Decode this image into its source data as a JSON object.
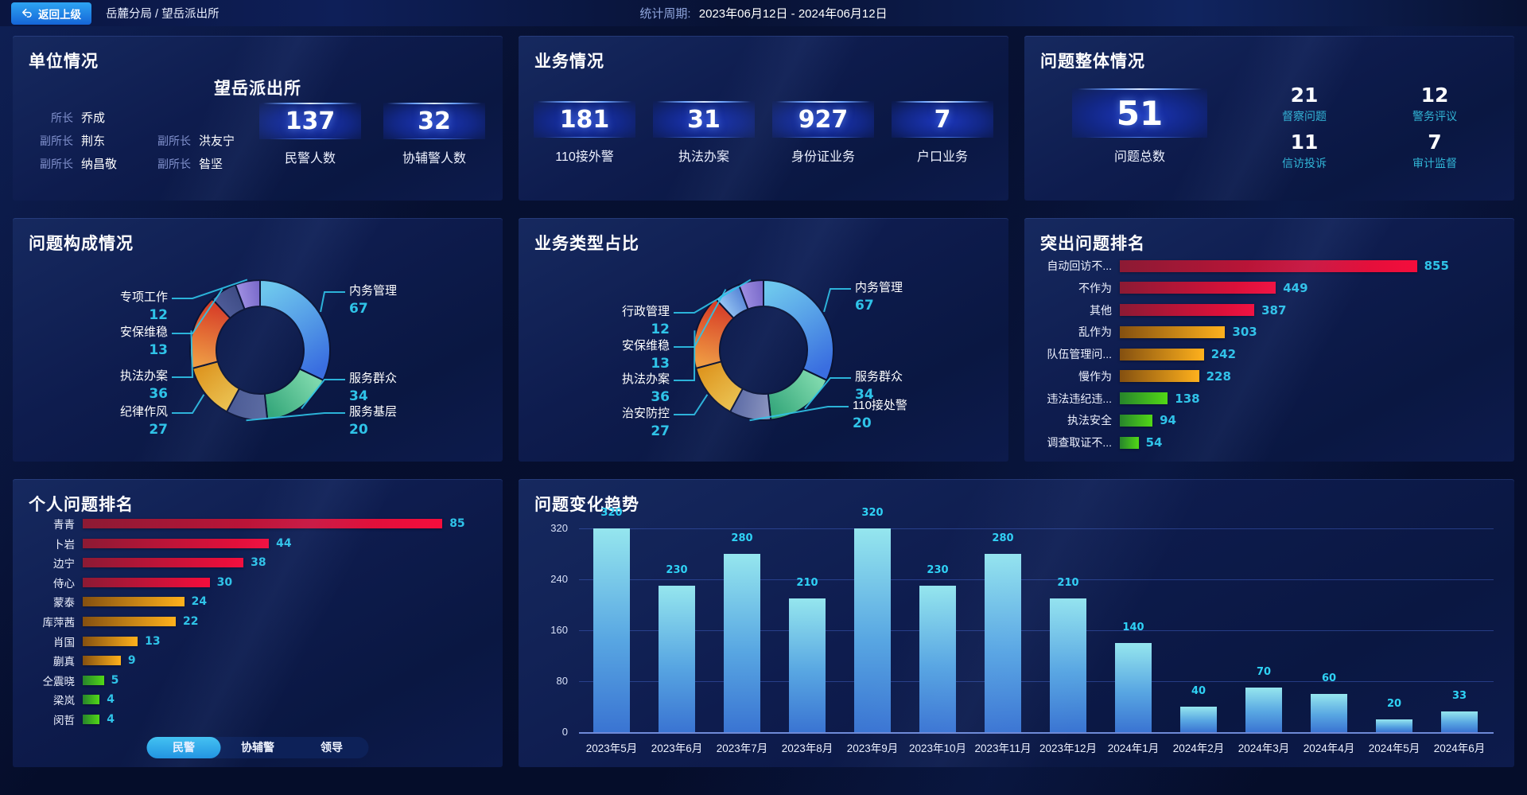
{
  "header": {
    "back_button": "返回上级",
    "breadcrumb": "岳麓分局 / 望岳派出所",
    "period_label": "统计周期:",
    "period_value": "2023年06月12日 - 2024年06月12日"
  },
  "unit_panel": {
    "title": "单位情况",
    "station_name": "望岳派出所",
    "leader_rows": [
      [
        {
          "role": "所长",
          "name": "乔成"
        }
      ],
      [
        {
          "role": "副所长",
          "name": "荆东"
        },
        {
          "role": "副所长",
          "name": "洪友宁"
        }
      ],
      [
        {
          "role": "副所长",
          "name": "纳昌敬"
        },
        {
          "role": "副所长",
          "name": "昝坚"
        }
      ]
    ],
    "stats": [
      {
        "value": "137",
        "label": "民警人数"
      },
      {
        "value": "32",
        "label": "协辅警人数"
      }
    ]
  },
  "business_panel": {
    "title": "业务情况",
    "stats": [
      {
        "value": "181",
        "label": "110接外警"
      },
      {
        "value": "31",
        "label": "执法办案"
      },
      {
        "value": "927",
        "label": "身份证业务"
      },
      {
        "value": "7",
        "label": "户口业务"
      }
    ]
  },
  "problem_panel": {
    "title": "问题整体情况",
    "total": {
      "value": "51",
      "label": "问题总数"
    },
    "stats": [
      {
        "value": "21",
        "label": "督察问题"
      },
      {
        "value": "12",
        "label": "警务评议"
      },
      {
        "value": "11",
        "label": "信访投诉"
      },
      {
        "value": "7",
        "label": "审计监督"
      }
    ]
  },
  "personal_panel": {
    "tabs": [
      {
        "label": "民警",
        "active": true
      },
      {
        "label": "协辅警",
        "active": false
      },
      {
        "label": "领导",
        "active": false
      }
    ]
  },
  "colors": {
    "accent_cyan": "#2fc3e8",
    "label_cyan": "#31b5d6",
    "palette": {
      "red": [
        "#8c1a34",
        "#f50d3c"
      ],
      "gold": [
        "#845010",
        "#ffb11c"
      ],
      "green": [
        "#27842c",
        "#52d816"
      ]
    },
    "trend_bar": [
      "#95e6ee",
      "#3a74d2"
    ]
  },
  "chart_data": [
    {
      "id": "problem_composition",
      "type": "pie",
      "title": "问题构成情况",
      "labels": [
        "内务管理",
        "服务群众",
        "服务基层",
        "纪律作风",
        "执法办案",
        "安保维稳",
        "专项工作"
      ],
      "values": [
        67,
        34,
        20,
        27,
        36,
        13,
        12
      ],
      "colors": [
        [
          "#6cc8ec",
          "#3a6ee0"
        ],
        [
          "#7ed8ac",
          "#35a87a"
        ],
        [
          "#5b6aa0",
          "#4a5890"
        ],
        [
          "#f2c141",
          "#e0961c"
        ],
        [
          "#f09a40",
          "#d84028"
        ],
        [
          "#4d5a96",
          "#3e4b84"
        ],
        [
          "#9d8ce0",
          "#7a68c8"
        ]
      ],
      "legend_position": "none"
    },
    {
      "id": "business_type",
      "type": "pie",
      "title": "业务类型占比",
      "labels": [
        "内务管理",
        "服务群众",
        "110接处警",
        "治安防控",
        "执法办案",
        "安保维稳",
        "行政管理"
      ],
      "values": [
        67,
        34,
        20,
        27,
        36,
        13,
        12
      ],
      "colors": [
        [
          "#6cc8ec",
          "#3a6ee0"
        ],
        [
          "#7ed8ac",
          "#35a87a"
        ],
        [
          "#8a93bd",
          "#5d6aa2"
        ],
        [
          "#f2c141",
          "#e0961c"
        ],
        [
          "#f09a40",
          "#d84028"
        ],
        [
          "#93c2f2",
          "#5a88d8"
        ],
        [
          "#9d8ce0",
          "#7a68c8"
        ]
      ],
      "legend_position": "none"
    },
    {
      "id": "top_problems",
      "type": "bar",
      "orientation": "horizontal",
      "title": "突出问题排名",
      "categories": [
        "自动回访不...",
        "不作为",
        "其他",
        "乱作为",
        "队伍管理问...",
        "慢作为",
        "违法违纪违...",
        "执法安全",
        "调查取证不..."
      ],
      "values": [
        855,
        449,
        387,
        303,
        242,
        228,
        138,
        94,
        54
      ],
      "color_groups": [
        "red",
        "red",
        "red",
        "gold",
        "gold",
        "gold",
        "green",
        "green",
        "green"
      ],
      "xlim": [
        0,
        900
      ],
      "grid": false
    },
    {
      "id": "personal_ranking",
      "type": "bar",
      "orientation": "horizontal",
      "title": "个人问题排名",
      "categories": [
        "青青",
        "卜岩",
        "边宁",
        "侍心",
        "蒙泰",
        "库萍茜",
        "肖国",
        "蒯真",
        "仝震晓",
        "梁岚",
        "闵哲"
      ],
      "values": [
        85,
        44,
        38,
        30,
        24,
        22,
        13,
        9,
        5,
        4,
        4
      ],
      "color_groups": [
        "red",
        "red",
        "red",
        "red",
        "gold",
        "gold",
        "gold",
        "gold",
        "green",
        "green",
        "green"
      ],
      "xlim": [
        0,
        90
      ],
      "grid": false
    },
    {
      "id": "problem_trend",
      "type": "bar",
      "orientation": "vertical",
      "title": "问题变化趋势",
      "categories": [
        "2023年5月",
        "2023年6月",
        "2023年7月",
        "2023年8月",
        "2023年9月",
        "2023年10月",
        "2023年11月",
        "2023年12月",
        "2024年1月",
        "2024年2月",
        "2024年3月",
        "2024年4月",
        "2024年5月",
        "2024年6月"
      ],
      "values": [
        320,
        230,
        280,
        210,
        320,
        230,
        280,
        210,
        140,
        40,
        70,
        60,
        20,
        33
      ],
      "xlabel": "",
      "ylabel": "",
      "ylim": [
        0,
        320
      ],
      "yticks": [
        0,
        80,
        160,
        240,
        320
      ],
      "grid": true
    }
  ]
}
